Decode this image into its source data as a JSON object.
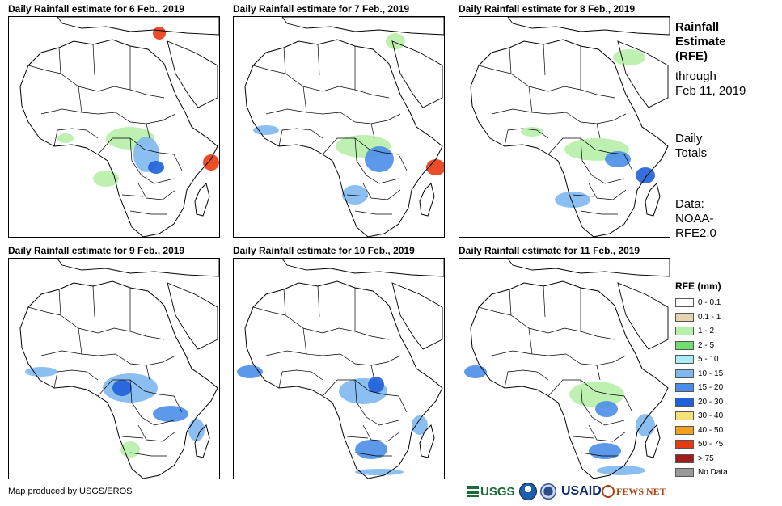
{
  "panels": [
    {
      "title": "Daily Rainfall estimate for 6 Feb., 2019"
    },
    {
      "title": "Daily Rainfall estimate for 7 Feb., 2019"
    },
    {
      "title": "Daily Rainfall estimate for 8 Feb., 2019"
    },
    {
      "title": "Daily Rainfall estimate for 9 Feb., 2019"
    },
    {
      "title": "Daily Rainfall estimate for 10 Feb., 2019"
    },
    {
      "title": "Daily Rainfall estimate for 11 Feb., 2019"
    }
  ],
  "side": {
    "title_line1": "Rainfall",
    "title_line2": "Estimate",
    "title_line3": "(RFE)",
    "through_line1": "through",
    "through_line2": "Feb 11, 2019",
    "daily_line1": "Daily",
    "daily_line2": "Totals",
    "data_line1": "Data:",
    "data_line2": "NOAA-",
    "data_line3": "RFE2.0"
  },
  "legend": {
    "title": "RFE (mm)",
    "items": [
      {
        "label": "0 - 0.1",
        "color": "#ffffff"
      },
      {
        "label": "0.1 - 1",
        "color": "#e6d3b3"
      },
      {
        "label": "1 - 2",
        "color": "#b7f0a8"
      },
      {
        "label": "2 - 5",
        "color": "#6fe06f"
      },
      {
        "label": "5 - 10",
        "color": "#aaeef5"
      },
      {
        "label": "10 - 15",
        "color": "#7fb8f0"
      },
      {
        "label": "15 - 20",
        "color": "#4a8ee8"
      },
      {
        "label": "20 - 30",
        "color": "#1f5fd8"
      },
      {
        "label": "30 - 40",
        "color": "#f6e07a"
      },
      {
        "label": "40 - 50",
        "color": "#f3a020"
      },
      {
        "label": "50 - 75",
        "color": "#e83a10"
      },
      {
        "label": "> 75",
        "color": "#a01c1c"
      },
      {
        "label": "No Data",
        "color": "#999999"
      }
    ]
  },
  "credit": "Map produced by USGS/EROS",
  "logos": {
    "usgs": "USGS",
    "usaid": "USAID",
    "fewsnet": "FEWS NET"
  }
}
